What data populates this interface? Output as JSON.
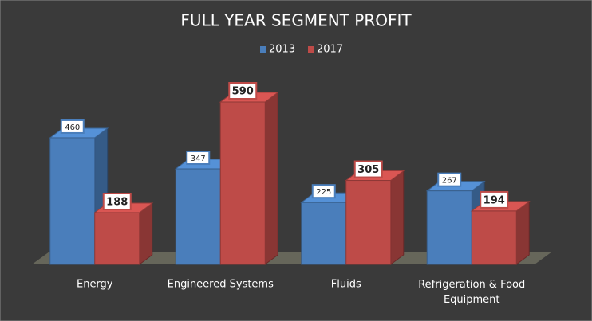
{
  "chart_data": {
    "type": "bar3d",
    "title": "FULL YEAR SEGMENT PROFIT",
    "categories": [
      "Energy",
      "Engineered Systems",
      "Fluids",
      "Refrigeration & Food Equipment"
    ],
    "series": [
      {
        "name": "2013",
        "color": "#4a7ebb",
        "values": [
          460,
          347,
          225,
          267
        ]
      },
      {
        "name": "2017",
        "color": "#be4b48",
        "values": [
          188,
          590,
          305,
          194
        ]
      }
    ],
    "legend": "top"
  }
}
